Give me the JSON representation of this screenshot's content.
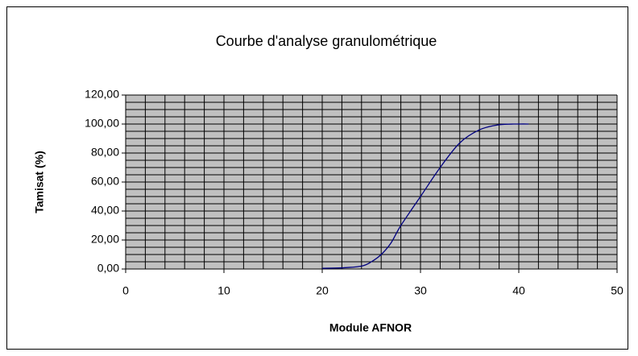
{
  "chart_data": {
    "type": "line",
    "title": "Courbe d'analyse granulométrique",
    "x_label": "Module AFNOR",
    "y_label": "Tamisat (%)",
    "series": [
      {
        "name": "Tamisat",
        "color": "#000080",
        "x": [
          20,
          22,
          24,
          25,
          26,
          27,
          28,
          30,
          32,
          34,
          36,
          38,
          40,
          41
        ],
        "values": [
          0.5,
          0.8,
          2,
          5,
          10,
          18,
          30,
          50,
          70,
          87,
          96,
          99.5,
          100,
          100
        ]
      }
    ],
    "xlim": [
      0,
      50
    ],
    "xticks": [
      0,
      10,
      20,
      30,
      40,
      50
    ],
    "ylim": [
      0,
      120
    ],
    "yticks": [
      {
        "value": 0,
        "label": "0,00"
      },
      {
        "value": 20,
        "label": "20,00"
      },
      {
        "value": 40,
        "label": "40,00"
      },
      {
        "value": 60,
        "label": "60,00"
      },
      {
        "value": 80,
        "label": "80,00"
      },
      {
        "value": 100,
        "label": "100,00"
      },
      {
        "value": 120,
        "label": "120,00"
      }
    ],
    "minor_grid": {
      "x": 2,
      "y": 5
    },
    "plot_background": "#c0c0c0",
    "grid_color": "#000000"
  }
}
